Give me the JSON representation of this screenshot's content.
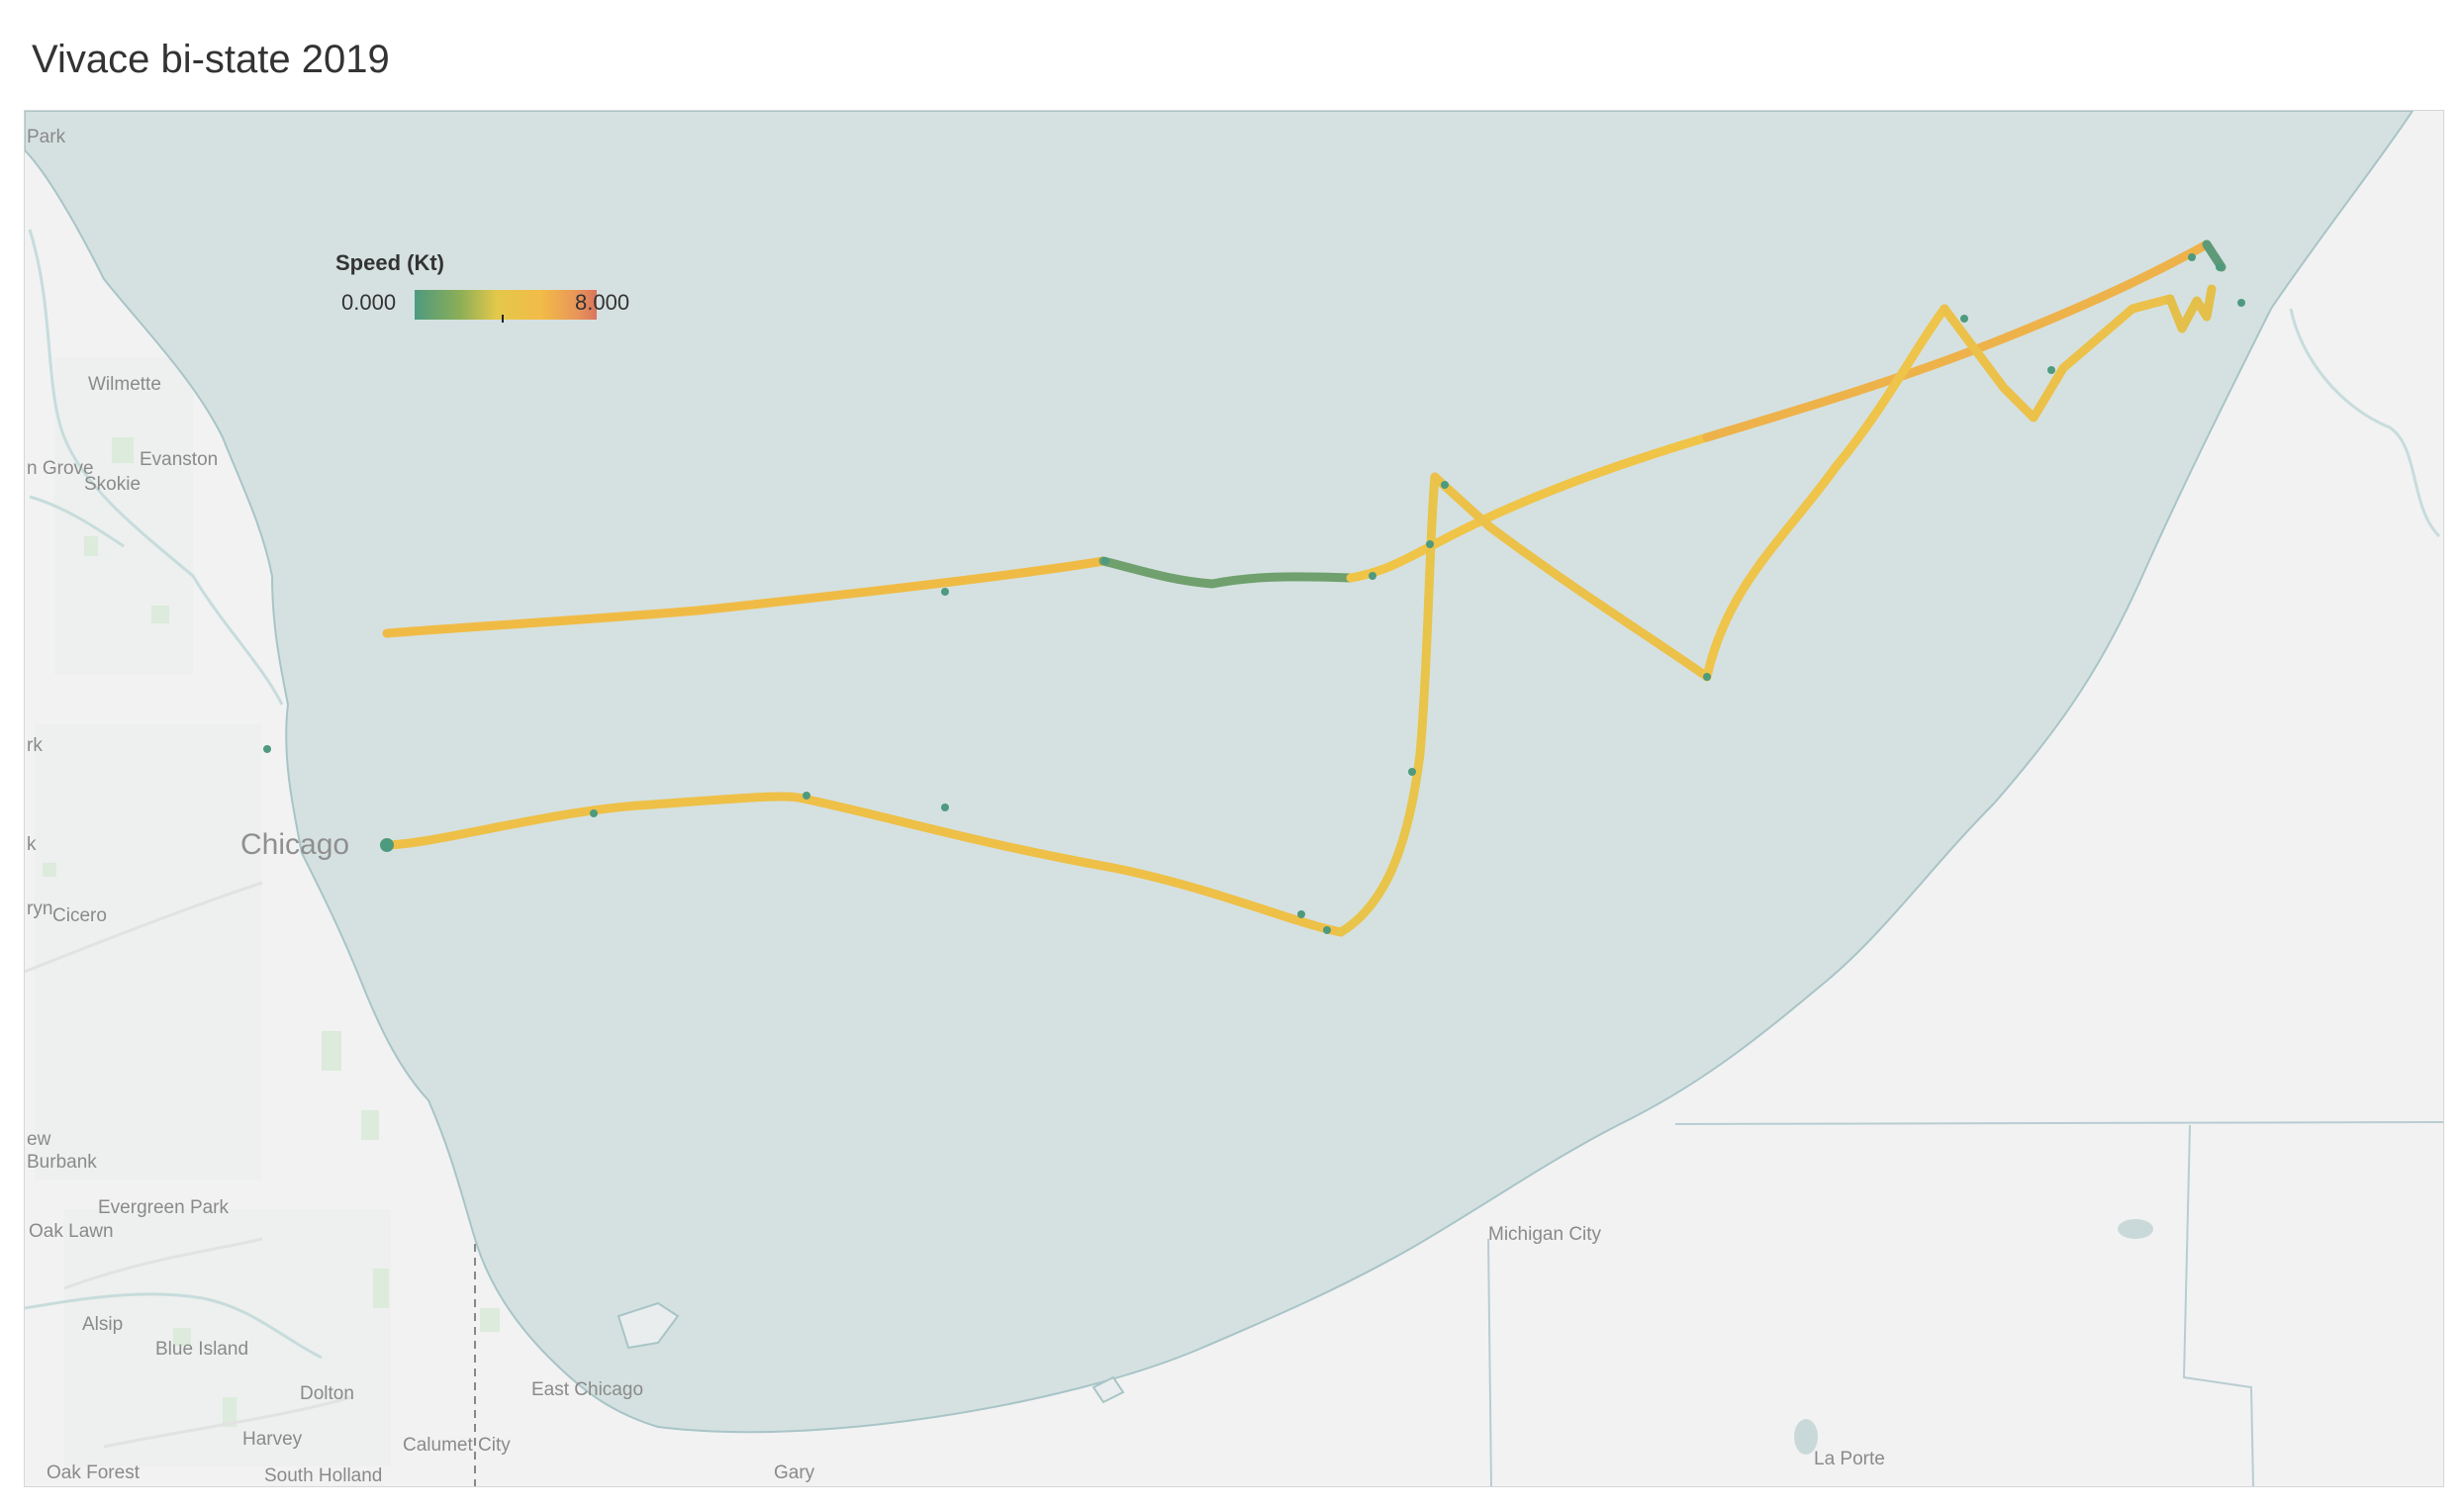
{
  "title": "Vivace bi-state 2019",
  "legend": {
    "title": "Speed (Kt)",
    "min": "0.000",
    "max": "8.000",
    "colors": [
      "#4e9a7e",
      "#8cae57",
      "#e3c84a",
      "#f2bb47",
      "#e8945a",
      "#d9755c"
    ]
  },
  "map": {
    "water_color": "#d5e1e0",
    "land_color": "#f2f2f2",
    "labels": {
      "park": "Park",
      "wilmette": "Wilmette",
      "morton_grove": "n Grove",
      "evanston": "Evanston",
      "skokie": "Skokie",
      "rk": "rk",
      "k": "k",
      "chicago": "Chicago",
      "berwyn": "ryn",
      "cicero": "Cicero",
      "new": "ew",
      "burbank": "Burbank",
      "evergreen_park": "Evergreen Park",
      "oak_lawn": "Oak Lawn",
      "alsip": "Alsip",
      "blue_island": "Blue Island",
      "dolton": "Dolton",
      "harvey": "Harvey",
      "calumet_city": "Calumet City",
      "oak_forest": "Oak Forest",
      "south_holland": "South Holland",
      "east_chicago": "East Chicago",
      "gary": "Gary",
      "michigan_city": "Michigan City",
      "la_porte": "La Porte"
    }
  }
}
